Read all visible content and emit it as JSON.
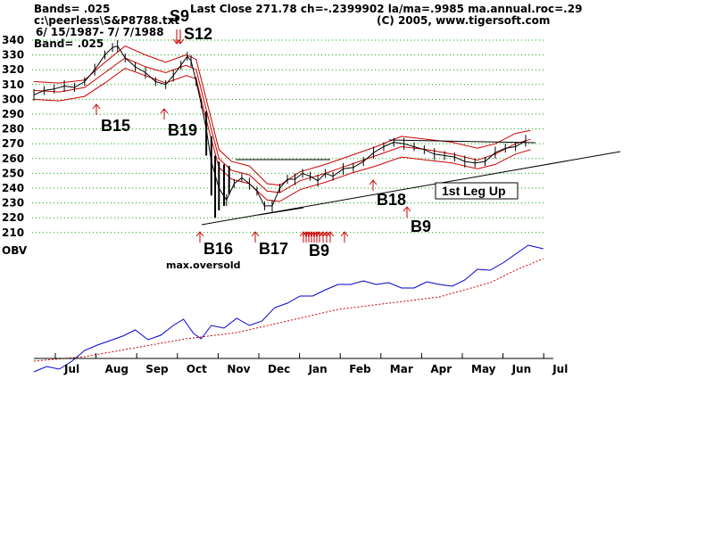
{
  "header": {
    "line1": "Bands= .025",
    "line2": "c:\\peerless\\S&P8788.txt",
    "line3": "6/ 15/1987- 7/ 7/1988",
    "line4": "Band= .025",
    "stats": "Last Close 271.78 ch=-.2399902  la/ma=.9985 ma.annual.roc=.29",
    "copyright": "(C) 2005, www.tigersoft.com"
  },
  "chart_data": {
    "type": "line",
    "y_ticks": [
      340,
      330,
      320,
      310,
      300,
      290,
      280,
      270,
      260,
      250,
      240,
      230,
      220,
      210
    ],
    "ylim": [
      210,
      340
    ],
    "obv_label": "OBV",
    "months": [
      "Jul",
      "Aug",
      "Sep",
      "Oct",
      "Nov",
      "Dec",
      "Jan",
      "Feb",
      "Mar",
      "Apr",
      "May",
      "Jun",
      "Jul"
    ],
    "grid": true,
    "colors": {
      "price": "#000000",
      "bands": "#cc0000",
      "obv": "#0000cc",
      "obv_ma": "#cc0000",
      "arrows": "#cc0000",
      "grid": "#00aa00"
    },
    "price_close": [
      [
        0,
        303
      ],
      [
        8,
        306
      ],
      [
        16,
        307
      ],
      [
        24,
        309
      ],
      [
        32,
        308
      ],
      [
        40,
        312
      ],
      [
        48,
        320
      ],
      [
        56,
        330
      ],
      [
        62,
        335
      ],
      [
        66,
        336
      ],
      [
        72,
        328
      ],
      [
        80,
        322
      ],
      [
        88,
        318
      ],
      [
        96,
        312
      ],
      [
        104,
        310
      ],
      [
        110,
        316
      ],
      [
        116,
        323
      ],
      [
        121,
        329
      ],
      [
        124,
        326
      ],
      [
        128,
        312
      ],
      [
        132,
        297
      ],
      [
        136,
        280
      ],
      [
        140,
        258
      ],
      [
        146,
        240
      ],
      [
        152,
        232
      ],
      [
        158,
        243
      ],
      [
        164,
        247
      ],
      [
        170,
        243
      ],
      [
        176,
        238
      ],
      [
        182,
        228
      ],
      [
        188,
        228
      ],
      [
        194,
        240
      ],
      [
        200,
        246
      ],
      [
        206,
        246
      ],
      [
        212,
        250
      ],
      [
        218,
        248
      ],
      [
        224,
        245
      ],
      [
        230,
        250
      ],
      [
        236,
        248
      ],
      [
        244,
        253
      ],
      [
        252,
        254
      ],
      [
        260,
        258
      ],
      [
        268,
        264
      ],
      [
        276,
        268
      ],
      [
        284,
        271
      ],
      [
        292,
        270
      ],
      [
        300,
        268
      ],
      [
        308,
        266
      ],
      [
        316,
        263
      ],
      [
        324,
        262
      ],
      [
        332,
        261
      ],
      [
        340,
        258
      ],
      [
        348,
        257
      ],
      [
        356,
        258
      ],
      [
        364,
        264
      ],
      [
        372,
        267
      ],
      [
        380,
        268
      ],
      [
        388,
        272
      ]
    ],
    "band_upper": [
      [
        0,
        312
      ],
      [
        20,
        311
      ],
      [
        40,
        313
      ],
      [
        56,
        325
      ],
      [
        72,
        336
      ],
      [
        88,
        330
      ],
      [
        104,
        325
      ],
      [
        120,
        330
      ],
      [
        128,
        327
      ],
      [
        136,
        300
      ],
      [
        146,
        266
      ],
      [
        156,
        258
      ],
      [
        170,
        255
      ],
      [
        184,
        243
      ],
      [
        194,
        242
      ],
      [
        210,
        251
      ],
      [
        230,
        256
      ],
      [
        250,
        262
      ],
      [
        270,
        268
      ],
      [
        290,
        275
      ],
      [
        310,
        273
      ],
      [
        330,
        271
      ],
      [
        350,
        267
      ],
      [
        364,
        270
      ],
      [
        380,
        277
      ],
      [
        392,
        279
      ]
    ],
    "band_middle": [
      [
        0,
        306
      ],
      [
        20,
        305
      ],
      [
        40,
        308
      ],
      [
        56,
        318
      ],
      [
        72,
        328
      ],
      [
        88,
        322
      ],
      [
        104,
        318
      ],
      [
        120,
        323
      ],
      [
        128,
        320
      ],
      [
        136,
        293
      ],
      [
        146,
        260
      ],
      [
        156,
        252
      ],
      [
        170,
        249
      ],
      [
        184,
        238
      ],
      [
        194,
        237
      ],
      [
        210,
        245
      ],
      [
        230,
        250
      ],
      [
        250,
        256
      ],
      [
        270,
        262
      ],
      [
        290,
        268
      ],
      [
        310,
        266
      ],
      [
        330,
        263
      ],
      [
        350,
        259
      ],
      [
        364,
        263
      ],
      [
        380,
        270
      ],
      [
        392,
        273
      ]
    ],
    "band_lower": [
      [
        0,
        300
      ],
      [
        20,
        299
      ],
      [
        40,
        302
      ],
      [
        56,
        311
      ],
      [
        72,
        321
      ],
      [
        88,
        316
      ],
      [
        104,
        311
      ],
      [
        120,
        316
      ],
      [
        128,
        314
      ],
      [
        136,
        286
      ],
      [
        146,
        254
      ],
      [
        156,
        246
      ],
      [
        170,
        243
      ],
      [
        184,
        232
      ],
      [
        194,
        231
      ],
      [
        210,
        239
      ],
      [
        230,
        244
      ],
      [
        250,
        250
      ],
      [
        270,
        255
      ],
      [
        290,
        261
      ],
      [
        310,
        259
      ],
      [
        330,
        257
      ],
      [
        350,
        253
      ],
      [
        364,
        256
      ],
      [
        380,
        263
      ],
      [
        392,
        266
      ]
    ],
    "obv": [
      [
        0,
        -82
      ],
      [
        10,
        -76
      ],
      [
        20,
        -79
      ],
      [
        30,
        -70
      ],
      [
        40,
        -58
      ],
      [
        50,
        -52
      ],
      [
        60,
        -47
      ],
      [
        70,
        -42
      ],
      [
        80,
        -35
      ],
      [
        90,
        -46
      ],
      [
        100,
        -41
      ],
      [
        110,
        -30
      ],
      [
        118,
        -23
      ],
      [
        126,
        -39
      ],
      [
        132,
        -45
      ],
      [
        140,
        -30
      ],
      [
        150,
        -33
      ],
      [
        160,
        -22
      ],
      [
        170,
        -30
      ],
      [
        180,
        -25
      ],
      [
        190,
        -10
      ],
      [
        200,
        -5
      ],
      [
        210,
        3
      ],
      [
        220,
        3
      ],
      [
        230,
        10
      ],
      [
        240,
        16
      ],
      [
        250,
        16
      ],
      [
        260,
        20
      ],
      [
        270,
        16
      ],
      [
        280,
        18
      ],
      [
        290,
        12
      ],
      [
        300,
        12
      ],
      [
        310,
        19
      ],
      [
        320,
        16
      ],
      [
        330,
        14
      ],
      [
        340,
        21
      ],
      [
        350,
        33
      ],
      [
        360,
        32
      ],
      [
        370,
        40
      ],
      [
        380,
        50
      ],
      [
        390,
        60
      ],
      [
        396,
        58
      ],
      [
        402,
        56
      ]
    ],
    "obv_ma": [
      [
        0,
        -70
      ],
      [
        40,
        -65
      ],
      [
        80,
        -55
      ],
      [
        120,
        -45
      ],
      [
        160,
        -38
      ],
      [
        200,
        -25
      ],
      [
        240,
        -12
      ],
      [
        280,
        -5
      ],
      [
        320,
        2
      ],
      [
        360,
        18
      ],
      [
        380,
        32
      ],
      [
        402,
        45
      ]
    ],
    "signals": [
      {
        "label": "S9",
        "type": "sell"
      },
      {
        "label": "S12",
        "type": "sell"
      },
      {
        "label": "B15",
        "type": "buy"
      },
      {
        "label": "B19",
        "type": "buy"
      },
      {
        "label": "B16",
        "type": "buy"
      },
      {
        "label": "max.oversold",
        "type": "note"
      },
      {
        "label": "B17",
        "type": "buy"
      },
      {
        "label": "B9",
        "type": "buy"
      },
      {
        "label": "B18",
        "type": "buy"
      },
      {
        "label": "B9",
        "type": "buy"
      }
    ],
    "annotation_box": "1st Leg Up"
  }
}
